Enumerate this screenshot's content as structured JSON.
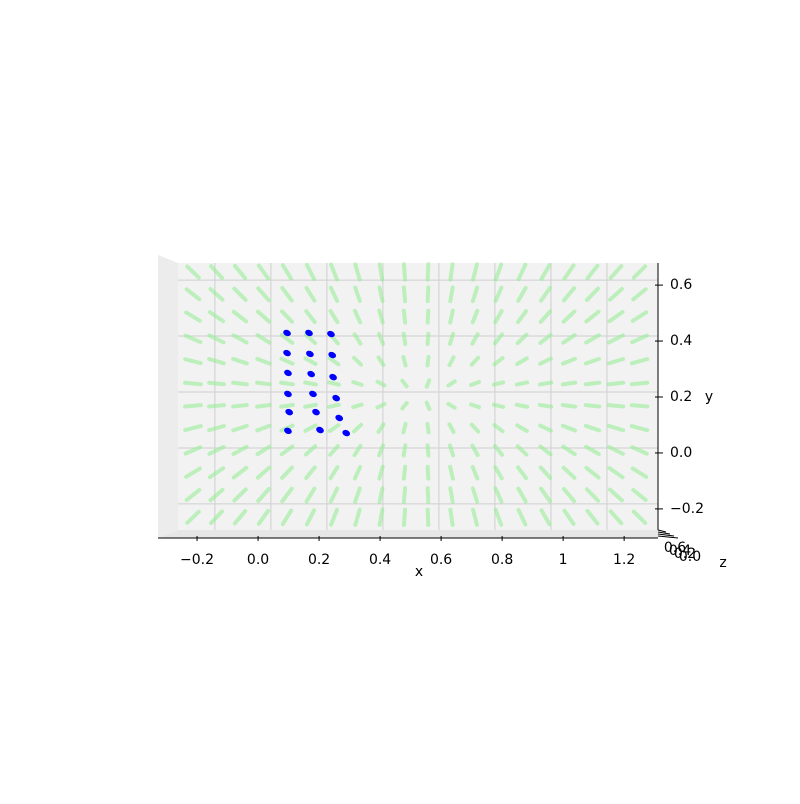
{
  "chart_data": {
    "type": "scatter",
    "projection": "3d",
    "x_label": "x",
    "y_label": "y",
    "z_label": "z",
    "series": [
      {
        "color": "#0000ff",
        "x": [
          0.095,
          0.167,
          0.239,
          0.095,
          0.17,
          0.243,
          0.098,
          0.174,
          0.246,
          0.098,
          0.18,
          0.256,
          0.102,
          0.19,
          0.266,
          0.098,
          0.203,
          0.289
        ],
        "values": [
          0.429,
          0.429,
          0.425,
          0.357,
          0.354,
          0.35,
          0.286,
          0.282,
          0.271,
          0.211,
          0.211,
          0.196,
          0.146,
          0.146,
          0.125,
          0.079,
          0.082,
          0.071
        ]
      }
    ],
    "field_color": "#90ee90",
    "xlim": [
      -0.328,
      1.311
    ],
    "xticks": [
      {
        "value": -0.2,
        "label": "−0.2"
      },
      {
        "value": 0,
        "label": "0.0"
      },
      0.2,
      0.4,
      0.6,
      0.8,
      1.0,
      1.2
    ],
    "ylim": [
      -0.304,
      0.679
    ],
    "yticks": [
      {
        "value": -0.2,
        "label": "−0.2"
      },
      {
        "value": 0,
        "label": "0.0"
      },
      0.2,
      0.4,
      0.6
    ],
    "zticks": [
      {
        "value": 0,
        "label": "0.0"
      },
      0.2,
      0.4,
      0.6
    ],
    "grid": true
  }
}
